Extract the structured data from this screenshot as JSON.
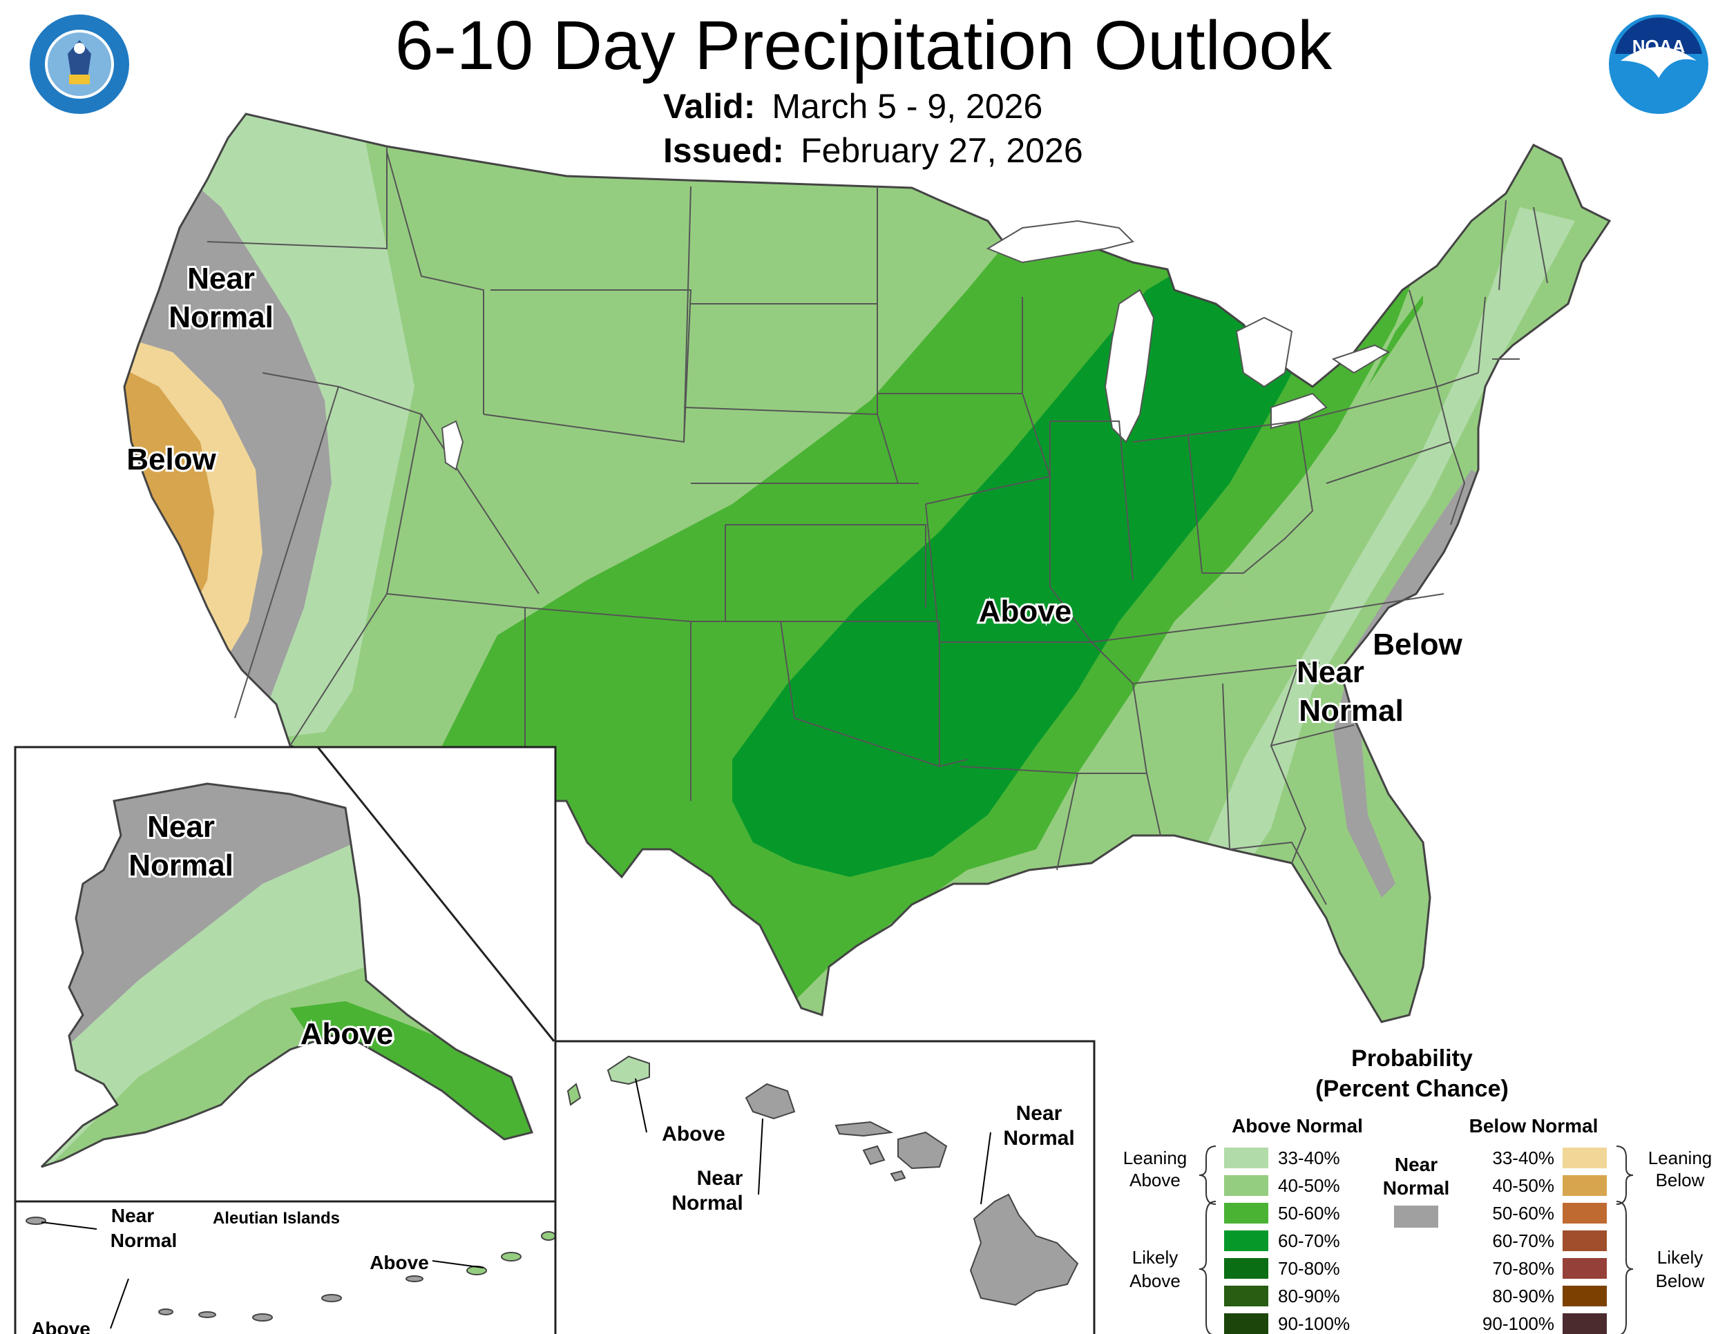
{
  "header": {
    "title": "6-10 Day Precipitation Outlook",
    "valid_label": "Valid:",
    "valid_value": "March 5 - 9, 2026",
    "issued_label": "Issued:",
    "issued_value": "February 27, 2026"
  },
  "logos": {
    "left": "department-of-commerce-seal",
    "right": "noaa-logo",
    "right_text": "NOAA"
  },
  "map_labels": {
    "conus": {
      "near_normal_west_1": "Near",
      "near_normal_west_2": "Normal",
      "below_west": "Below",
      "above_central": "Above",
      "near_normal_east_1": "Near",
      "near_normal_east_2": "Normal",
      "below_east": "Below"
    },
    "alaska": {
      "near_normal_1": "Near",
      "near_normal_2": "Normal",
      "above": "Above"
    },
    "aleutians": {
      "title": "Aleutian Islands",
      "near_normal_1": "Near",
      "near_normal_2": "Normal",
      "above_right": "Above",
      "above_left": "Above"
    },
    "hawaii": {
      "above": "Above",
      "near_normal_mid_1": "Near",
      "near_normal_mid_2": "Normal",
      "near_normal_right_1": "Near",
      "near_normal_right_2": "Normal"
    }
  },
  "legend": {
    "title_1": "Probability",
    "title_2": "(Percent Chance)",
    "above_header": "Above Normal",
    "below_header": "Below Normal",
    "near_header_1": "Near",
    "near_header_2": "Normal",
    "near_color": "#a0a0a0",
    "leaning_above_1": "Leaning",
    "leaning_above_2": "Above",
    "likely_above_1": "Likely",
    "likely_above_2": "Above",
    "leaning_below_1": "Leaning",
    "leaning_below_2": "Below",
    "likely_below_1": "Likely",
    "likely_below_2": "Below",
    "above_rows": [
      {
        "label": "33-40%",
        "color": "#b2dbaa"
      },
      {
        "label": "40-50%",
        "color": "#95cd80"
      },
      {
        "label": "50-60%",
        "color": "#4ab334"
      },
      {
        "label": "60-70%",
        "color": "#06992a"
      },
      {
        "label": "70-80%",
        "color": "#0a6e14"
      },
      {
        "label": "80-90%",
        "color": "#285d12"
      },
      {
        "label": "90-100%",
        "color": "#1c4609"
      }
    ],
    "below_rows": [
      {
        "label": "33-40%",
        "color": "#f1d698"
      },
      {
        "label": "40-50%",
        "color": "#d7a54e"
      },
      {
        "label": "50-60%",
        "color": "#bf6a31"
      },
      {
        "label": "60-70%",
        "color": "#a04e2b"
      },
      {
        "label": "70-80%",
        "color": "#954038"
      },
      {
        "label": "80-90%",
        "color": "#7c4000"
      },
      {
        "label": "90-100%",
        "color": "#4b2b2e"
      }
    ]
  }
}
